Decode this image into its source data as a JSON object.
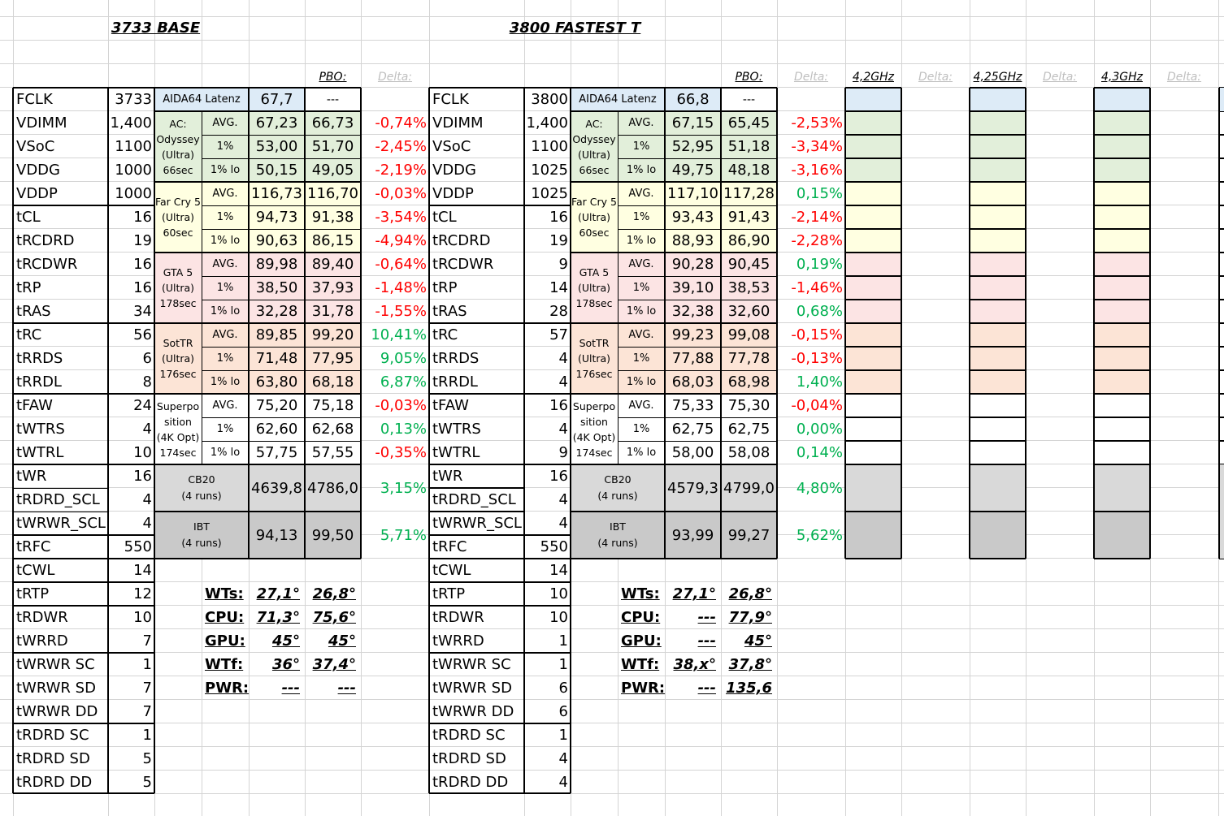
{
  "titles": {
    "left": "3733 BASE",
    "right": "3800 FASTEST T"
  },
  "header_row": {
    "pbo": "PBO:",
    "delta": "Delta:",
    "f1": "4,2GHz",
    "f2": "4,25GHz",
    "f3": "4,3GHz"
  },
  "params": [
    "FCLK",
    "VDIMM",
    "VSoC",
    "VDDG",
    "VDDP",
    "tCL",
    "tRCDRD",
    "tRCDWR",
    "tRP",
    "tRAS",
    "tRC",
    "tRRDS",
    "tRRDL",
    "tFAW",
    "tWTRS",
    "tWTRL",
    "tWR",
    "tRDRD_SCL",
    "tWRWR_SCL",
    "tRFC",
    "tCWL",
    "tRTP",
    "tRDWR",
    "tWRRD",
    "tWRWR SC",
    "tWRWR SD",
    "tWRWR DD",
    "tRDRD SC",
    "tRDRD SD",
    "tRDRD DD"
  ],
  "left_values": [
    "3733",
    "1,400",
    "1100",
    "1000",
    "1000",
    "16",
    "19",
    "16",
    "16",
    "34",
    "56",
    "6",
    "8",
    "24",
    "4",
    "10",
    "16",
    "4",
    "4",
    "550",
    "14",
    "12",
    "10",
    "7",
    "1",
    "7",
    "7",
    "1",
    "5",
    "5"
  ],
  "right_values": [
    "3800",
    "1,400",
    "1100",
    "1025",
    "1025",
    "16",
    "19",
    "9",
    "14",
    "28",
    "57",
    "4",
    "4",
    "16",
    "4",
    "9",
    "16",
    "4",
    "4",
    "550",
    "14",
    "10",
    "10",
    "1",
    "1",
    "6",
    "6",
    "1",
    "4",
    "4"
  ],
  "aida": {
    "label": "AIDA64 Latenz",
    "left": [
      "67,7",
      "---"
    ],
    "right": [
      "66,8",
      "---"
    ]
  },
  "bench_groups": [
    {
      "lines": [
        "AC:",
        "Odyssey",
        "(Ultra)",
        "66sec"
      ],
      "color": "#e2efda"
    },
    {
      "lines": [
        "Far Cry 5",
        "(Ultra)",
        "60sec"
      ],
      "color": "#ffffe1"
    },
    {
      "lines": [
        "GTA 5",
        "(Ultra)",
        "178sec"
      ],
      "color": "#fce4e4"
    },
    {
      "lines": [
        "SotTR",
        "(Ultra)",
        "176sec"
      ],
      "color": "#fce4d6"
    },
    {
      "lines": [
        "Superpo",
        "sition",
        "(4K Opt)",
        "174sec"
      ],
      "color": "#ffffff"
    }
  ],
  "stat_labels": [
    "AVG.",
    "1%",
    "1% lo"
  ],
  "left_bench": [
    [
      "67,23",
      "66,73",
      "-0,74%"
    ],
    [
      "53,00",
      "51,70",
      "-2,45%"
    ],
    [
      "50,15",
      "49,05",
      "-2,19%"
    ],
    [
      "116,73",
      "116,70",
      "-0,03%"
    ],
    [
      "94,73",
      "91,38",
      "-3,54%"
    ],
    [
      "90,63",
      "86,15",
      "-4,94%"
    ],
    [
      "89,98",
      "89,40",
      "-0,64%"
    ],
    [
      "38,50",
      "37,93",
      "-1,48%"
    ],
    [
      "32,28",
      "31,78",
      "-1,55%"
    ],
    [
      "89,85",
      "99,20",
      "10,41%"
    ],
    [
      "71,48",
      "77,95",
      "9,05%"
    ],
    [
      "63,80",
      "68,18",
      "6,87%"
    ],
    [
      "75,20",
      "75,18",
      "-0,03%"
    ],
    [
      "62,60",
      "62,68",
      "0,13%"
    ],
    [
      "57,75",
      "57,55",
      "-0,35%"
    ]
  ],
  "right_bench": [
    [
      "67,15",
      "65,45",
      "-2,53%"
    ],
    [
      "52,95",
      "51,18",
      "-3,34%"
    ],
    [
      "49,75",
      "48,18",
      "-3,16%"
    ],
    [
      "117,10",
      "117,28",
      "0,15%"
    ],
    [
      "93,43",
      "91,43",
      "-2,14%"
    ],
    [
      "88,93",
      "86,90",
      "-2,28%"
    ],
    [
      "90,28",
      "90,45",
      "0,19%"
    ],
    [
      "39,10",
      "38,53",
      "-1,46%"
    ],
    [
      "32,38",
      "32,60",
      "0,68%"
    ],
    [
      "99,23",
      "99,08",
      "-0,15%"
    ],
    [
      "77,88",
      "77,78",
      "-0,13%"
    ],
    [
      "68,03",
      "68,98",
      "1,40%"
    ],
    [
      "75,33",
      "75,30",
      "-0,04%"
    ],
    [
      "62,75",
      "62,75",
      "0,00%"
    ],
    [
      "58,00",
      "58,08",
      "0,14%"
    ]
  ],
  "cb20": {
    "label1": "CB20",
    "label2": "(4 runs)",
    "left": [
      "4639,8",
      "4786,0",
      "3,15%"
    ],
    "right": [
      "4579,3",
      "4799,0",
      "4,80%"
    ]
  },
  "ibt": {
    "label1": "IBT",
    "label2": "(4 runs)",
    "left": [
      "94,13",
      "99,50",
      "5,71%"
    ],
    "right": [
      "93,99",
      "99,27",
      "5,62%"
    ]
  },
  "temps_labels": [
    "WTs:",
    "CPU:",
    "GPU:",
    "WTf:",
    "PWR:"
  ],
  "left_temps": [
    [
      "27,1°",
      "26,8°"
    ],
    [
      "71,3°",
      "75,6°"
    ],
    [
      "45°",
      "45°"
    ],
    [
      "36°",
      "37,4°"
    ],
    [
      "---",
      "---"
    ]
  ],
  "right_temps": [
    [
      "27,1°",
      "26,8°"
    ],
    [
      "---",
      "77,9°"
    ],
    [
      "---",
      "45°"
    ],
    [
      "38,x°",
      "37,8°"
    ],
    [
      "---",
      "135,6"
    ]
  ],
  "colors": {
    "aida": "#ddebf7",
    "cb20": "#d9d9d9",
    "ibt": "#c9c9c9",
    "negative": "#ff0000",
    "positive": "#00b050",
    "grid": "#d4d4d4",
    "faded": "#bfbfbf"
  }
}
